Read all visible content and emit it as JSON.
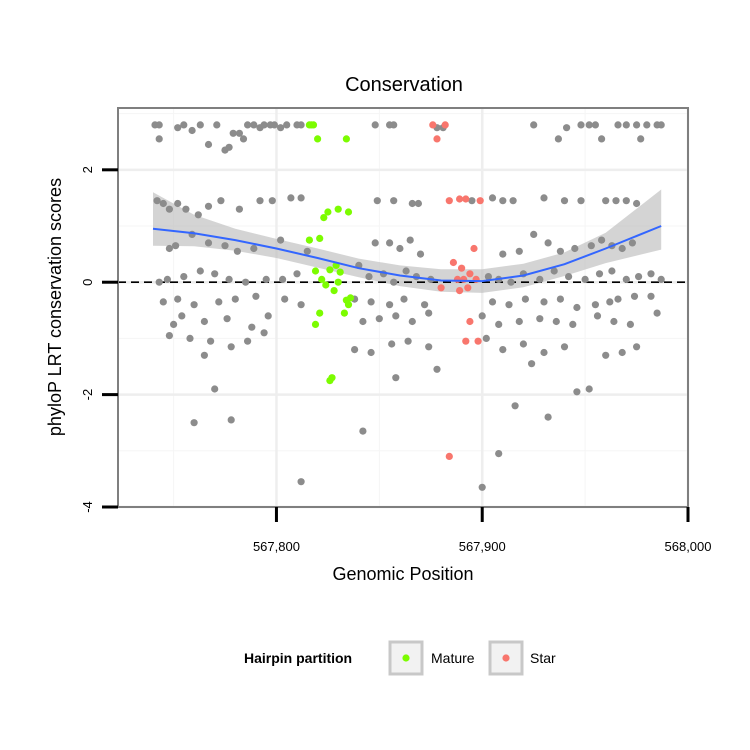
{
  "chart_data": {
    "type": "scatter",
    "title": "Conservation",
    "xlabel": "Genomic Position",
    "ylabel": "phyloP LRT conservation scores",
    "xlim": [
      567723,
      568000
    ],
    "ylim": [
      -4,
      3.1
    ],
    "x_ticks": [
      567800,
      567900,
      568000
    ],
    "x_tick_labels": [
      "567,800",
      "567,900",
      "568,000"
    ],
    "y_ticks": [
      -4,
      -2,
      0,
      2
    ],
    "y_tick_labels": [
      "-4",
      "-2",
      "0",
      "2"
    ],
    "grid": true,
    "reference_line": {
      "y": 0,
      "style": "dashed"
    },
    "legend": {
      "title": "Hairpin partition",
      "position": "bottom",
      "entries": [
        {
          "label": "Mature",
          "color": "#7cfc00"
        },
        {
          "label": "Star",
          "color": "#f8766d"
        }
      ]
    },
    "colors": {
      "other": "#8c8c8c",
      "mature": "#7cfc00",
      "star": "#f8766d",
      "smooth": "#3366ff",
      "ribbon": "#bdbdbd"
    },
    "smooth": {
      "x": [
        567740,
        567760,
        567780,
        567800,
        567820,
        567840,
        567860,
        567880,
        567900,
        567920,
        567940,
        567960,
        567987
      ],
      "y": [
        0.95,
        0.87,
        0.75,
        0.6,
        0.43,
        0.25,
        0.12,
        0.03,
        0.02,
        0.12,
        0.32,
        0.6,
        1.0
      ],
      "lower": [
        0.65,
        0.64,
        0.56,
        0.43,
        0.26,
        0.09,
        -0.07,
        -0.17,
        -0.19,
        -0.09,
        0.11,
        0.34,
        0.58
      ],
      "upper": [
        1.6,
        1.2,
        0.95,
        0.77,
        0.6,
        0.42,
        0.3,
        0.23,
        0.23,
        0.33,
        0.53,
        0.88,
        1.65
      ]
    },
    "series": [
      {
        "name": "Mature",
        "x": [
          567816,
          567818,
          567817,
          567820,
          567821,
          567823,
          567825,
          567830,
          567835,
          567834,
          567819,
          567822,
          567826,
          567829,
          567831,
          567834,
          567836,
          567824,
          567821,
          567833,
          567828,
          567827,
          567819,
          567826,
          567816,
          567835,
          567830
        ],
        "y": [
          2.8,
          2.8,
          2.8,
          2.55,
          0.78,
          1.15,
          1.25,
          1.3,
          1.25,
          2.55,
          0.2,
          0.05,
          0.22,
          0.3,
          0.18,
          -0.32,
          -0.28,
          -0.05,
          -0.55,
          -0.55,
          -0.15,
          -1.7,
          -0.75,
          -1.75,
          0.75,
          -0.4,
          0.0
        ],
        "color": "#7cfc00"
      },
      {
        "name": "Star",
        "x": [
          567876,
          567878,
          567882,
          567884,
          567889,
          567892,
          567899,
          567886,
          567890,
          567894,
          567896,
          567888,
          567880,
          567891,
          567893,
          567897,
          567884,
          567894,
          567898,
          567892,
          567889
        ],
        "y": [
          2.8,
          2.55,
          2.8,
          1.45,
          1.48,
          1.48,
          1.45,
          0.35,
          0.25,
          0.15,
          0.6,
          0.05,
          -0.1,
          0.05,
          -0.1,
          0.05,
          -3.1,
          -0.7,
          -1.05,
          -1.05,
          -0.15
        ],
        "color": "#f8766d"
      },
      {
        "name": "",
        "x": [
          567741,
          567743,
          567743,
          567752,
          567755,
          567759,
          567763,
          567767,
          567771,
          567775,
          567777,
          567779,
          567782,
          567784,
          567786,
          567789,
          567792,
          567794,
          567797,
          567799,
          567802,
          567805,
          567810,
          567812,
          567848,
          567855,
          567857,
          567878,
          567881,
          567925,
          567937,
          567941,
          567948,
          567952,
          567955,
          567958,
          567966,
          567970,
          567975,
          567977,
          567980,
          567985,
          567987,
          567742,
          567745,
          567748,
          567752,
          567756,
          567762,
          567767,
          567773,
          567782,
          567792,
          567798,
          567807,
          567812,
          567849,
          567857,
          567866,
          567869,
          567895,
          567905,
          567910,
          567915,
          567930,
          567940,
          567948,
          567960,
          567965,
          567970,
          567975,
          567748,
          567751,
          567759,
          567767,
          567775,
          567781,
          567789,
          567802,
          567815,
          567848,
          567855,
          567860,
          567865,
          567870,
          567910,
          567918,
          567925,
          567932,
          567938,
          567945,
          567953,
          567958,
          567963,
          567968,
          567973,
          567743,
          567747,
          567755,
          567763,
          567770,
          567777,
          567785,
          567795,
          567803,
          567810,
          567840,
          567845,
          567852,
          567857,
          567863,
          567868,
          567875,
          567903,
          567908,
          567914,
          567920,
          567928,
          567935,
          567942,
          567950,
          567957,
          567963,
          567970,
          567976,
          567982,
          567987,
          567745,
          567752,
          567760,
          567772,
          567780,
          567790,
          567804,
          567812,
          567838,
          567846,
          567855,
          567862,
          567872,
          567905,
          567913,
          567921,
          567930,
          567938,
          567946,
          567955,
          567962,
          567966,
          567974,
          567982,
          567750,
          567754,
          567765,
          567776,
          567788,
          567796,
          567842,
          567850,
          567858,
          567866,
          567874,
          567900,
          567908,
          567918,
          567928,
          567936,
          567944,
          567956,
          567964,
          567972,
          567985,
          567748,
          567758,
          567768,
          567778,
          567786,
          567794,
          567838,
          567846,
          567856,
          567864,
          567874,
          567902,
          567910,
          567920,
          567930,
          567940,
          567960,
          567968,
          567975,
          567760,
          567765,
          567770,
          567778,
          567812,
          567842,
          567858,
          567878,
          567900,
          567908,
          567916,
          567924,
          567932,
          567946,
          567952
        ],
        "y": [
          2.8,
          2.8,
          2.55,
          2.75,
          2.8,
          2.7,
          2.8,
          2.45,
          2.8,
          2.35,
          2.4,
          2.65,
          2.65,
          2.55,
          2.8,
          2.8,
          2.75,
          2.8,
          2.8,
          2.8,
          2.75,
          2.8,
          2.8,
          2.8,
          2.8,
          2.8,
          2.8,
          2.75,
          2.75,
          2.8,
          2.55,
          2.75,
          2.8,
          2.8,
          2.8,
          2.55,
          2.8,
          2.8,
          2.8,
          2.55,
          2.8,
          2.8,
          2.8,
          1.45,
          1.4,
          1.3,
          1.4,
          1.3,
          1.2,
          1.35,
          1.45,
          1.3,
          1.45,
          1.45,
          1.5,
          1.5,
          1.45,
          1.45,
          1.4,
          1.4,
          1.45,
          1.5,
          1.45,
          1.45,
          1.5,
          1.45,
          1.45,
          1.45,
          1.45,
          1.45,
          1.4,
          0.6,
          0.65,
          0.85,
          0.7,
          0.65,
          0.55,
          0.6,
          0.75,
          0.55,
          0.7,
          0.7,
          0.6,
          0.75,
          0.5,
          0.5,
          0.55,
          0.85,
          0.7,
          0.55,
          0.6,
          0.65,
          0.75,
          0.65,
          0.6,
          0.7,
          0.0,
          0.05,
          0.1,
          0.2,
          0.15,
          0.05,
          0.0,
          0.05,
          0.05,
          0.15,
          0.3,
          0.1,
          0.15,
          0.0,
          0.2,
          0.1,
          0.05,
          0.1,
          0.05,
          0.0,
          0.15,
          0.05,
          0.2,
          0.1,
          0.05,
          0.15,
          0.2,
          0.05,
          0.1,
          0.15,
          0.05,
          -0.35,
          -0.3,
          -0.4,
          -0.35,
          -0.3,
          -0.25,
          -0.3,
          -0.4,
          -0.3,
          -0.35,
          -0.4,
          -0.3,
          -0.4,
          -0.35,
          -0.4,
          -0.3,
          -0.35,
          -0.3,
          -0.45,
          -0.4,
          -0.35,
          -0.3,
          -0.25,
          -0.25,
          -0.75,
          -0.6,
          -0.7,
          -0.65,
          -0.8,
          -0.6,
          -0.7,
          -0.65,
          -0.6,
          -0.7,
          -0.55,
          -0.6,
          -0.75,
          -0.7,
          -0.65,
          -0.7,
          -0.75,
          -0.6,
          -0.7,
          -0.75,
          -0.55,
          -0.95,
          -1.0,
          -1.05,
          -1.15,
          -1.05,
          -0.9,
          -1.2,
          -1.25,
          -1.1,
          -1.05,
          -1.15,
          -1.0,
          -1.2,
          -1.1,
          -1.25,
          -1.15,
          -1.3,
          -1.25,
          -1.15,
          -2.5,
          -1.3,
          -1.9,
          -2.45,
          -3.55,
          -2.65,
          -1.7,
          -1.55,
          -3.65,
          -3.05,
          -2.2,
          -1.45,
          -2.4,
          -1.95,
          -1.9
        ],
        "color": "#8c8c8c"
      }
    ]
  }
}
